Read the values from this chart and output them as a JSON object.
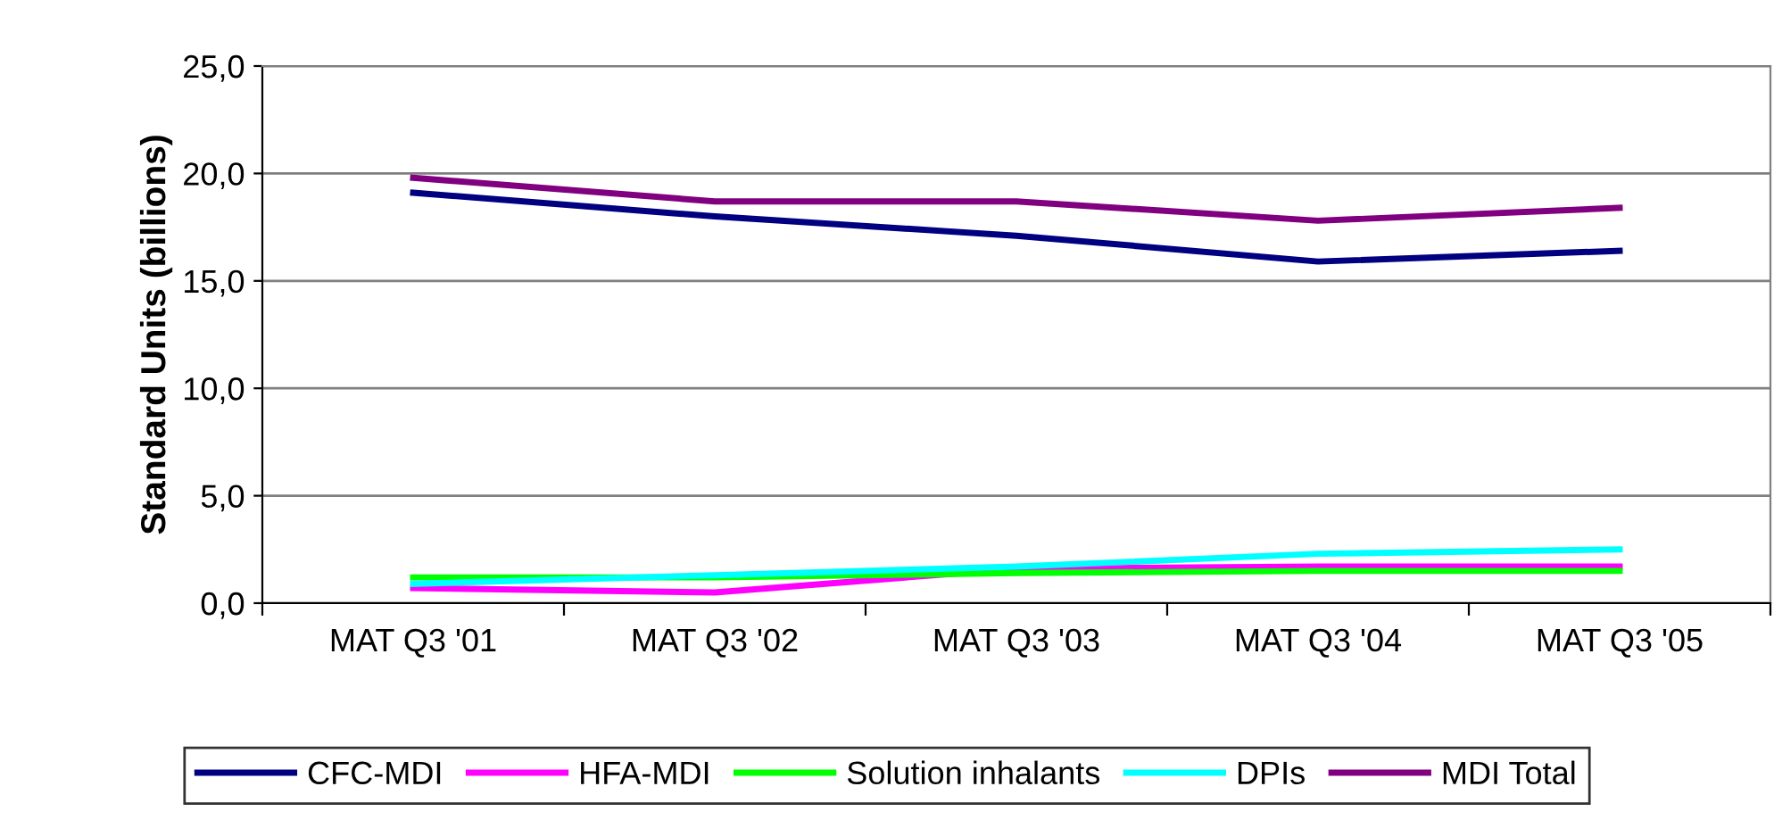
{
  "chart_data": {
    "type": "line",
    "ylabel": "Standard Units (billions)",
    "categories": [
      "MAT Q3 '01",
      "MAT Q3 '02",
      "MAT Q3 '03",
      "MAT Q3 '04",
      "MAT Q3 '05"
    ],
    "series": [
      {
        "name": "CFC-MDI",
        "color": "#000080",
        "values": [
          19.1,
          18.0,
          17.1,
          15.9,
          16.4
        ]
      },
      {
        "name": "HFA-MDI",
        "color": "#ff00ff",
        "values": [
          0.7,
          0.5,
          1.6,
          1.7,
          1.7
        ]
      },
      {
        "name": "Solution inhalants",
        "color": "#00ff00",
        "values": [
          1.2,
          1.2,
          1.4,
          1.5,
          1.5
        ]
      },
      {
        "name": "DPIs",
        "color": "#00ffff",
        "values": [
          0.9,
          1.3,
          1.7,
          2.3,
          2.5
        ]
      },
      {
        "name": "MDI Total",
        "color": "#800080",
        "values": [
          19.8,
          18.7,
          18.7,
          17.8,
          18.4
        ]
      }
    ],
    "ylim": [
      0,
      25
    ],
    "yticks": [
      {
        "value": 0,
        "label": "0,0"
      },
      {
        "value": 5,
        "label": "5,0"
      },
      {
        "value": 10,
        "label": "10,0"
      },
      {
        "value": 15,
        "label": "15,0"
      },
      {
        "value": 20,
        "label": "20,0"
      },
      {
        "value": 25,
        "label": "25,0"
      }
    ],
    "grid": "y",
    "legend": "bottom",
    "marker": "none",
    "line_style": "solid"
  }
}
